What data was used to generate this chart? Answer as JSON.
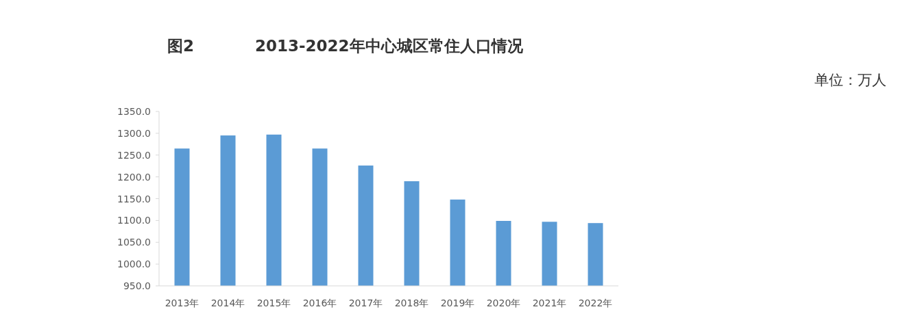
{
  "chart_data": {
    "type": "bar",
    "title": "2013-2022年中心城区常住人口情况",
    "annotations": [
      "图2",
      "单位：万人"
    ],
    "categories": [
      "2013年",
      "2014年",
      "2015年",
      "2016年",
      "2017年",
      "2018年",
      "2019年",
      "2020年",
      "2021年",
      "2022年"
    ],
    "values": [
      1265,
      1295,
      1297,
      1265,
      1226,
      1190,
      1148,
      1099,
      1097,
      1094
    ],
    "color": "#5b9bd5",
    "ylim": [
      950,
      1350
    ],
    "yticks": [
      {
        "value": 950,
        "label": "950.0"
      },
      {
        "value": 1000,
        "label": "1000.0"
      },
      {
        "value": 1050,
        "label": "1050.0"
      },
      {
        "value": 1100,
        "label": "1100.0"
      },
      {
        "value": 1150,
        "label": "1150.0"
      },
      {
        "value": 1200,
        "label": "1200.0"
      },
      {
        "value": 1250,
        "label": "1250.0"
      },
      {
        "value": 1300,
        "label": "1300.0"
      },
      {
        "value": 1350,
        "label": "1350.0"
      }
    ],
    "grid": false
  }
}
